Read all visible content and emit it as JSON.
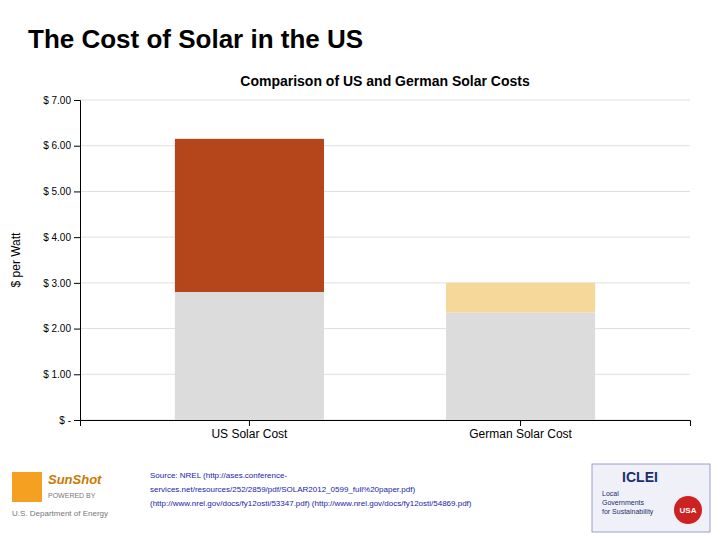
{
  "chart_data": {
    "type": "bar",
    "title": "The Cost of Solar in the US",
    "subtitle": "Comparison of US and German Solar Costs",
    "ylabel": "$ per Watt",
    "categories": [
      "US Solar Cost",
      "German Solar Cost"
    ],
    "stacked": true,
    "series": [
      {
        "color": "#dcdcdc",
        "values": [
          2.8,
          2.35
        ]
      },
      {
        "colors": [
          "#b5451b",
          "#f5d89a"
        ],
        "values": [
          3.35,
          0.65
        ]
      }
    ],
    "ylim": [
      0,
      7.0
    ],
    "yticks": [
      {
        "value": 0,
        "label": "$ -"
      },
      {
        "value": 1.0,
        "label": "$ 1.00"
      },
      {
        "value": 2.0,
        "label": "$ 2.00"
      },
      {
        "value": 3.0,
        "label": "$ 3.00"
      },
      {
        "value": 4.0,
        "label": "$ 4.00"
      },
      {
        "value": 5.0,
        "label": "$ 5.00"
      },
      {
        "value": 6.0,
        "label": "$ 6.00"
      },
      {
        "value": 7.0,
        "label": "$ 7.00"
      }
    ],
    "grid": true,
    "annotations": [
      "Source: NREL (http://ases.conference-",
      "services.net/resources/252/2859/pdf/SOLAR2012_0599_full%20paper.pdf)",
      "(http://www.nrel.gov/docs/fy12osti/53347.pdf) (http://www.nrel.gov/docs/fy12osti/54869.pdf)",
      "SunShot",
      "POWERED BY",
      "U.S. Department of Energy",
      "ICLEI",
      "Local\nGovernments\nfor Sustainability",
      "USA"
    ]
  }
}
